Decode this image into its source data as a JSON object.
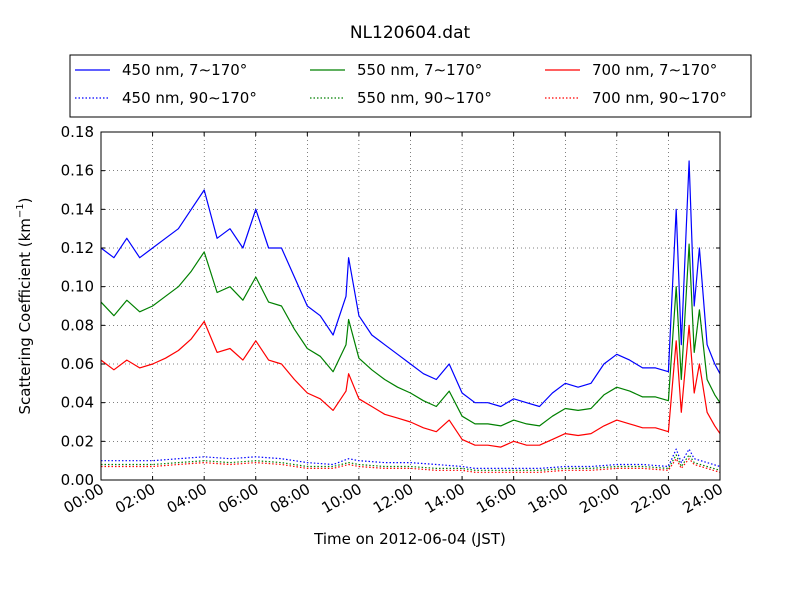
{
  "chart_data": {
    "type": "line",
    "title": "NL120604.dat",
    "xlabel": "Time on 2012-06-04 (JST)",
    "ylabel_main": "Scattering Coefficient (km",
    "ylabel_sup": "−1",
    "ylabel_end": ")",
    "x_ticks": [
      "00:00",
      "02:00",
      "04:00",
      "06:00",
      "08:00",
      "10:00",
      "12:00",
      "14:00",
      "16:00",
      "18:00",
      "20:00",
      "22:00",
      "24:00"
    ],
    "y_ticks": [
      "0.00",
      "0.02",
      "0.04",
      "0.06",
      "0.08",
      "0.10",
      "0.12",
      "0.14",
      "0.16",
      "0.18"
    ],
    "xlim": [
      0,
      24
    ],
    "ylim": [
      0,
      0.18
    ],
    "grid": true,
    "legend_position": "top",
    "legend_columns": 3,
    "series": [
      {
        "name": "450 nm, 7∼170°",
        "color": "#0000ff",
        "style": "solid",
        "x": [
          0,
          0.5,
          1,
          1.5,
          2,
          2.5,
          3,
          3.5,
          4,
          4.5,
          5,
          5.5,
          6,
          6.5,
          7,
          7.5,
          8,
          8.5,
          9,
          9.5,
          9.6,
          10,
          10.5,
          11,
          11.5,
          12,
          12.5,
          13,
          13.5,
          14,
          14.5,
          15,
          15.5,
          16,
          16.5,
          17,
          17.5,
          18,
          18.5,
          19,
          19.5,
          20,
          20.5,
          21,
          21.5,
          22,
          22.3,
          22.5,
          22.8,
          23,
          23.2,
          23.5,
          23.8,
          24
        ],
        "y": [
          0.12,
          0.115,
          0.125,
          0.115,
          0.12,
          0.125,
          0.13,
          0.14,
          0.15,
          0.125,
          0.13,
          0.12,
          0.14,
          0.12,
          0.12,
          0.105,
          0.09,
          0.085,
          0.075,
          0.095,
          0.115,
          0.085,
          0.075,
          0.07,
          0.065,
          0.06,
          0.055,
          0.052,
          0.06,
          0.045,
          0.04,
          0.04,
          0.038,
          0.042,
          0.04,
          0.038,
          0.045,
          0.05,
          0.048,
          0.05,
          0.06,
          0.065,
          0.062,
          0.058,
          0.058,
          0.056,
          0.14,
          0.07,
          0.165,
          0.09,
          0.12,
          0.07,
          0.06,
          0.055
        ]
      },
      {
        "name": "550 nm, 7∼170°",
        "color": "#008000",
        "style": "solid",
        "x": [
          0,
          0.5,
          1,
          1.5,
          2,
          2.5,
          3,
          3.5,
          4,
          4.5,
          5,
          5.5,
          6,
          6.5,
          7,
          7.5,
          8,
          8.5,
          9,
          9.5,
          9.6,
          10,
          10.5,
          11,
          11.5,
          12,
          12.5,
          13,
          13.5,
          14,
          14.5,
          15,
          15.5,
          16,
          16.5,
          17,
          17.5,
          18,
          18.5,
          19,
          19.5,
          20,
          20.5,
          21,
          21.5,
          22,
          22.3,
          22.5,
          22.8,
          23,
          23.2,
          23.5,
          23.8,
          24
        ],
        "y": [
          0.092,
          0.085,
          0.093,
          0.087,
          0.09,
          0.095,
          0.1,
          0.108,
          0.118,
          0.097,
          0.1,
          0.093,
          0.105,
          0.092,
          0.09,
          0.078,
          0.068,
          0.064,
          0.056,
          0.07,
          0.083,
          0.063,
          0.057,
          0.052,
          0.048,
          0.045,
          0.041,
          0.038,
          0.046,
          0.033,
          0.029,
          0.029,
          0.028,
          0.031,
          0.029,
          0.028,
          0.033,
          0.037,
          0.036,
          0.037,
          0.044,
          0.048,
          0.046,
          0.043,
          0.043,
          0.041,
          0.1,
          0.052,
          0.122,
          0.066,
          0.088,
          0.052,
          0.044,
          0.04
        ]
      },
      {
        "name": "700 nm, 7∼170°",
        "color": "#ff0000",
        "style": "solid",
        "x": [
          0,
          0.5,
          1,
          1.5,
          2,
          2.5,
          3,
          3.5,
          4,
          4.5,
          5,
          5.5,
          6,
          6.5,
          7,
          7.5,
          8,
          8.5,
          9,
          9.5,
          9.6,
          10,
          10.5,
          11,
          11.5,
          12,
          12.5,
          13,
          13.5,
          14,
          14.5,
          15,
          15.5,
          16,
          16.5,
          17,
          17.5,
          18,
          18.5,
          19,
          19.5,
          20,
          20.5,
          21,
          21.5,
          22,
          22.3,
          22.5,
          22.8,
          23,
          23.2,
          23.5,
          23.8,
          24
        ],
        "y": [
          0.062,
          0.057,
          0.062,
          0.058,
          0.06,
          0.063,
          0.067,
          0.073,
          0.082,
          0.066,
          0.068,
          0.062,
          0.072,
          0.062,
          0.06,
          0.052,
          0.045,
          0.042,
          0.036,
          0.046,
          0.055,
          0.042,
          0.038,
          0.034,
          0.032,
          0.03,
          0.027,
          0.025,
          0.031,
          0.021,
          0.018,
          0.018,
          0.017,
          0.02,
          0.018,
          0.018,
          0.021,
          0.024,
          0.023,
          0.024,
          0.028,
          0.031,
          0.029,
          0.027,
          0.027,
          0.025,
          0.072,
          0.035,
          0.08,
          0.045,
          0.06,
          0.035,
          0.028,
          0.024
        ]
      },
      {
        "name": "450 nm, 90∼170°",
        "color": "#0000ff",
        "style": "dotted",
        "x": [
          0,
          1,
          2,
          3,
          4,
          5,
          6,
          7,
          8,
          9,
          9.6,
          10,
          11,
          12,
          13,
          14,
          14.5,
          15,
          16,
          17,
          18,
          19,
          20,
          21,
          22,
          22.3,
          22.5,
          22.8,
          23,
          23.5,
          24
        ],
        "y": [
          0.01,
          0.01,
          0.01,
          0.011,
          0.012,
          0.011,
          0.012,
          0.011,
          0.009,
          0.008,
          0.011,
          0.01,
          0.009,
          0.009,
          0.008,
          0.007,
          0.006,
          0.006,
          0.006,
          0.006,
          0.007,
          0.007,
          0.008,
          0.008,
          0.007,
          0.016,
          0.009,
          0.016,
          0.011,
          0.009,
          0.007
        ]
      },
      {
        "name": "550 nm, 90∼170°",
        "color": "#008000",
        "style": "dotted",
        "x": [
          0,
          1,
          2,
          3,
          4,
          5,
          6,
          7,
          8,
          9,
          9.6,
          10,
          11,
          12,
          13,
          14,
          14.5,
          15,
          16,
          17,
          18,
          19,
          20,
          21,
          22,
          22.3,
          22.5,
          22.8,
          23,
          23.5,
          24
        ],
        "y": [
          0.008,
          0.008,
          0.008,
          0.009,
          0.01,
          0.009,
          0.01,
          0.009,
          0.007,
          0.007,
          0.009,
          0.008,
          0.007,
          0.007,
          0.006,
          0.006,
          0.005,
          0.005,
          0.005,
          0.005,
          0.006,
          0.006,
          0.007,
          0.007,
          0.006,
          0.013,
          0.007,
          0.013,
          0.009,
          0.007,
          0.005
        ]
      },
      {
        "name": "700 nm, 90∼170°",
        "color": "#ff0000",
        "style": "dotted",
        "x": [
          0,
          1,
          2,
          3,
          4,
          5,
          6,
          7,
          8,
          9,
          9.6,
          10,
          11,
          12,
          13,
          14,
          14.5,
          15,
          16,
          17,
          18,
          19,
          20,
          21,
          22,
          22.3,
          22.5,
          22.8,
          23,
          23.5,
          24
        ],
        "y": [
          0.007,
          0.007,
          0.007,
          0.008,
          0.009,
          0.008,
          0.009,
          0.008,
          0.006,
          0.006,
          0.008,
          0.007,
          0.006,
          0.006,
          0.005,
          0.005,
          0.004,
          0.004,
          0.004,
          0.004,
          0.005,
          0.005,
          0.006,
          0.006,
          0.005,
          0.011,
          0.006,
          0.011,
          0.008,
          0.006,
          0.004
        ]
      }
    ]
  }
}
